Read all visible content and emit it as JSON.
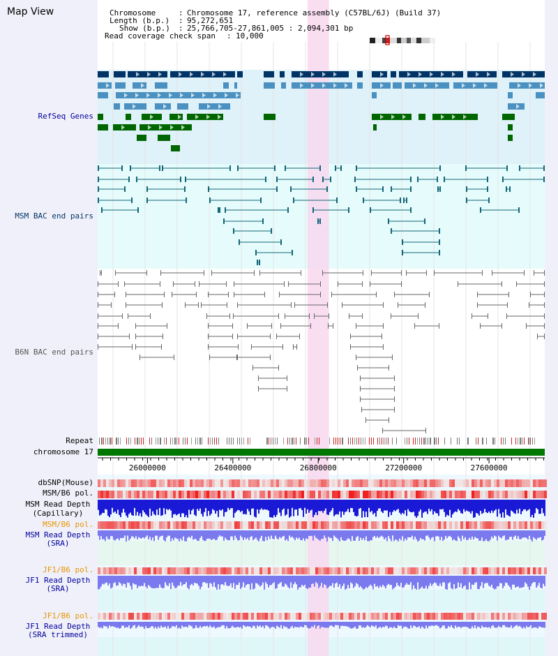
{
  "title": "Map View",
  "info": {
    "chromosome_label": "Chromosome",
    "chromosome_value": "Chromosome 17, reference assembly (C57BL/6J) (Build 37)",
    "length_label": "Length (b.p.)",
    "length_value": "95,272,651",
    "show_label": "Show (b.p.)",
    "show_value": "25,766,705-27,861,005 : 2,094,301 bp",
    "coverage_label": "Read coverage check span",
    "coverage_value": "10,000"
  },
  "tracks": {
    "refseq": "RefSeq Genes",
    "msm_bac": "MSM BAC end pairs",
    "b6n_bac": "B6N BAC end pairs",
    "repeat": "Repeat",
    "chromosome": "chromosome 17",
    "dbsnp": "dbSNP(Mouse)",
    "msm_b6_pol_1": "MSM/B6 pol.",
    "msm_read_depth_cap": "MSM Read Depth",
    "msm_read_depth_cap_sub": "(Capillary)",
    "msm_b6_pol_2": "MSM/B6 pol.",
    "msm_read_depth_sra": "MSM Read Depth",
    "msm_read_depth_sra_sub": "(SRA)",
    "jf1_b6_pol_1": "JF1/B6 pol.",
    "jf1_read_depth_sra": "JF1 Read Depth",
    "jf1_read_depth_sra_sub": "(SRA)",
    "jf1_b6_pol_2": "JF1/B6 pol.",
    "jf1_read_depth_trim": "JF1 Read Depth",
    "jf1_read_depth_trim_sub": "(SRA trimmed)"
  },
  "axis": {
    "start": 25766705,
    "end": 27861005,
    "tick_labels": [
      "26000000",
      "26400000",
      "26800000",
      "27200000",
      "27600000"
    ],
    "tick_values": [
      26000000,
      26400000,
      26800000,
      27200000,
      27600000
    ]
  },
  "highlight": {
    "start": 26750000,
    "end": 26850000
  },
  "colors": {
    "panel_bg": "#f0f0fa",
    "refseq_bg": "#dff1f9",
    "bac_bg": "#e6fbfb",
    "highlight": "#f8d8f0",
    "gene_dark": "#003366",
    "gene_light": "#4a90c0",
    "gene_green": "#006600",
    "chromosome": "#007700",
    "depth_blue": "#1a1ad6",
    "depth_light": "#7a7aee",
    "pol_red": "#ee2222"
  }
}
